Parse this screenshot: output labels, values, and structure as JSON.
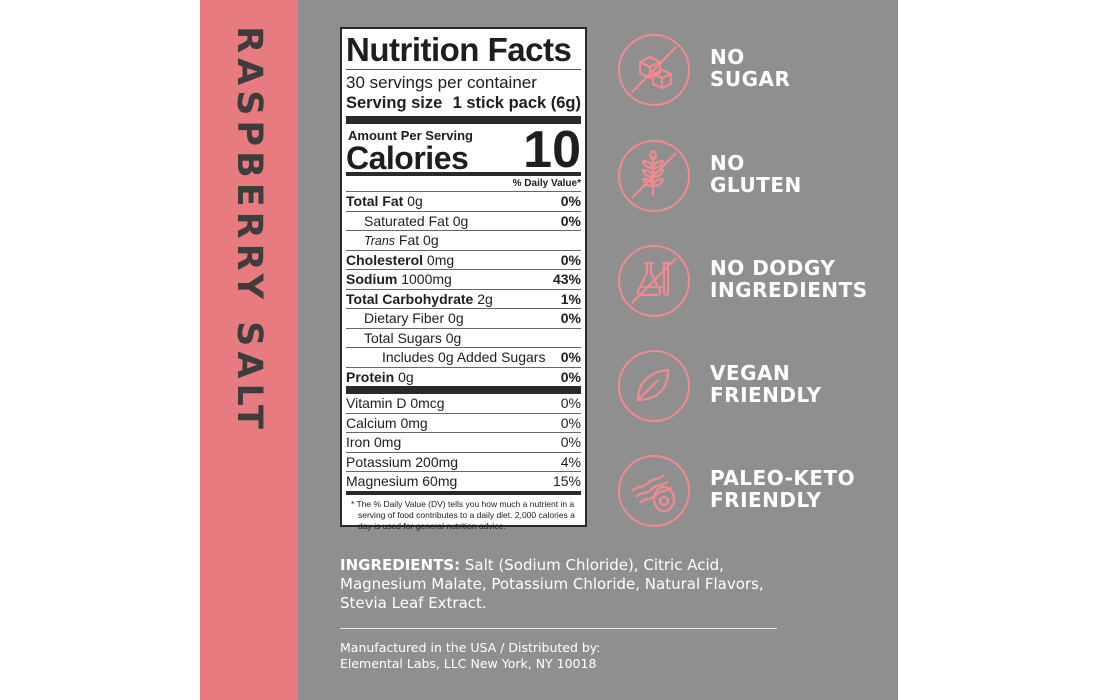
{
  "flavor": "RASPBERRY SALT",
  "nutrition": {
    "title": "Nutrition Facts",
    "servings": "30 servings per container",
    "serving_size_label": "Serving size",
    "serving_size_value": "1 stick pack (6g)",
    "amount_per_serving": "Amount Per Serving",
    "calories_label": "Calories",
    "calories_value": "10",
    "dv_header": "% Daily Value*",
    "rows": [
      {
        "label": "Total Fat",
        "amount": "0g",
        "pct": "0%"
      },
      {
        "label": "Saturated Fat",
        "amount": "0g",
        "pct": "0%"
      },
      {
        "label": "Trans",
        "amount": "Fat 0g",
        "pct": ""
      },
      {
        "label": "Cholesterol",
        "amount": "0mg",
        "pct": "0%"
      },
      {
        "label": "Sodium",
        "amount": "1000mg",
        "pct": "43%"
      },
      {
        "label": "Total Carbohydrate",
        "amount": "2g",
        "pct": "1%"
      },
      {
        "label": "Dietary Fiber",
        "amount": "0g",
        "pct": "0%"
      },
      {
        "label": "Total Sugars",
        "amount": "0g",
        "pct": ""
      },
      {
        "label": "Includes 0g Added Sugars",
        "amount": "",
        "pct": "0%"
      },
      {
        "label": "Protein",
        "amount": "0g",
        "pct": "0%"
      }
    ],
    "vitamins": [
      {
        "label": "Vitamin D 0mcg",
        "pct": "0%"
      },
      {
        "label": "Calcium 0mg",
        "pct": "0%"
      },
      {
        "label": "Iron 0mg",
        "pct": "0%"
      },
      {
        "label": "Potassium 200mg",
        "pct": "4%"
      },
      {
        "label": "Magnesium 60mg",
        "pct": "15%"
      }
    ],
    "footnote": "* The % Daily Value (DV) tells you how much a nutrient in a serving of food contributes to a daily diet. 2,000 calories a day is used for general nutrition advice."
  },
  "features": [
    {
      "icon": "sugar-cubes-icon",
      "line1": "NO",
      "line2": "SUGAR"
    },
    {
      "icon": "wheat-icon",
      "line1": "NO",
      "line2": "GLUTEN"
    },
    {
      "icon": "lab-flask-icon",
      "line1": "NO DODGY",
      "line2": "INGREDIENTS"
    },
    {
      "icon": "leaf-icon",
      "line1": "VEGAN",
      "line2": "FRIENDLY"
    },
    {
      "icon": "bacon-egg-icon",
      "line1": "PALEO-KETO",
      "line2": "FRIENDLY"
    }
  ],
  "ingredients": {
    "label": "INGREDIENTS:",
    "text": " Salt (Sodium Chloride), Citric Acid, Magnesium Malate, Potassium Chloride, Natural Flavors, Stevia Leaf Extract."
  },
  "manufacturer": {
    "line1": "Manufactured in the USA / Distributed by:",
    "line2": "Elemental Labs, LLC New York, NY 10018"
  },
  "colors": {
    "pink": "#e87b80",
    "gray": "#8f8f90",
    "icon_pink": "#f08a8e"
  }
}
